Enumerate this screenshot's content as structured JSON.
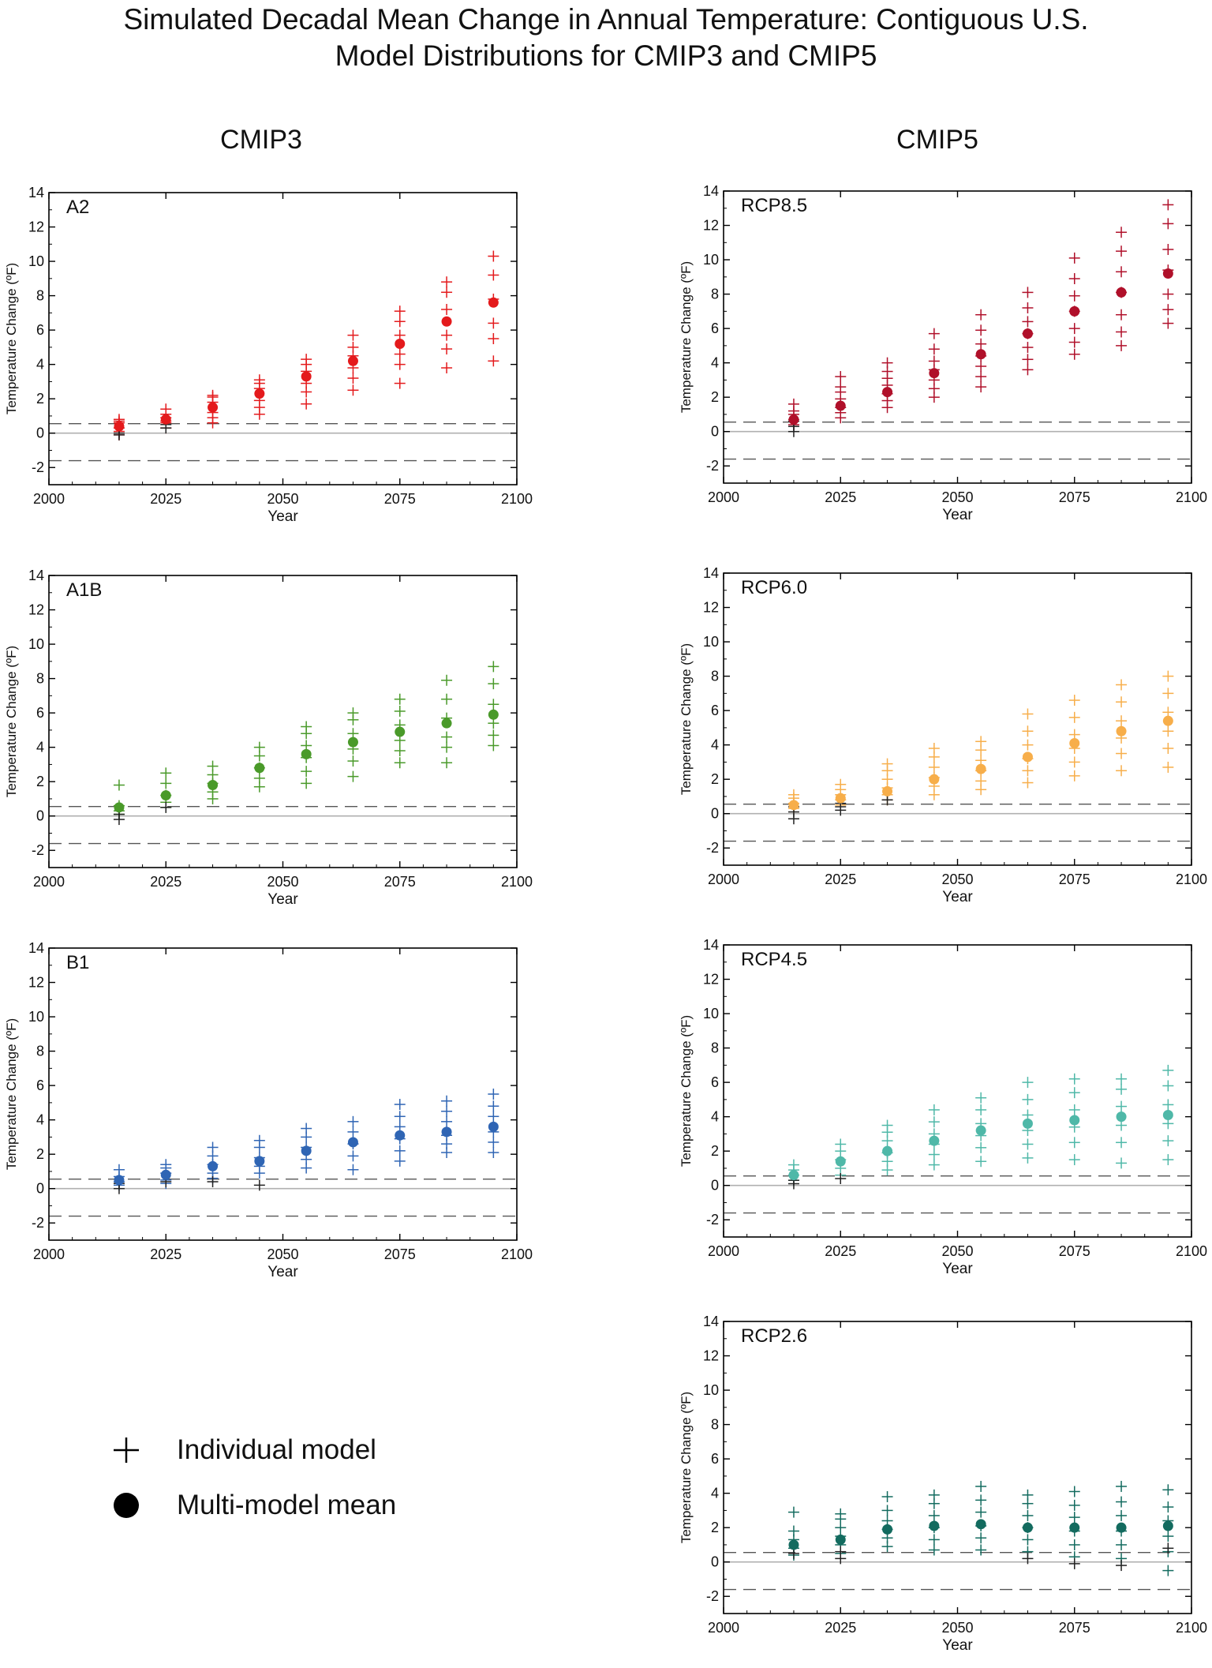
{
  "figure": {
    "title_line1": "Simulated Decadal Mean Change in Annual Temperature: Contiguous U.S.",
    "title_line2": "Model Distributions for CMIP3 and CMIP5",
    "columns": [
      "CMIP3",
      "CMIP5"
    ]
  },
  "legend": {
    "individual": "Individual model",
    "mean": "Multi-model mean"
  },
  "colors": {
    "A2": "#e41a1c",
    "A1B": "#4a9a2a",
    "B1": "#2f65b4",
    "RCP8.5": "#b0102a",
    "RCP6.0": "#f7ae4a",
    "RCP4.5": "#4fb8a8",
    "RCP2.6": "#136b5f",
    "observed": "#222222",
    "zero_line": "#b0b0b0",
    "range_lines": "#555555"
  },
  "chart_data": [
    {
      "type": "scatter",
      "panel": "A2",
      "label": "A2",
      "xlabel": "Year",
      "ylabel": "Temperature Change (ºF)",
      "xlim": [
        2000,
        2100
      ],
      "ylim": [
        -3,
        14
      ],
      "xticks": [
        2000,
        2025,
        2050,
        2075,
        2100
      ],
      "yticks": [
        -2,
        0,
        2,
        4,
        6,
        8,
        10,
        12,
        14
      ],
      "ref_lines": [
        0.55,
        -1.6
      ],
      "x": [
        2015,
        2025,
        2035,
        2045,
        2055,
        2065,
        2075,
        2085,
        2095
      ],
      "mean": [
        0.4,
        0.8,
        1.5,
        2.3,
        3.3,
        4.2,
        5.2,
        6.5,
        7.6
      ],
      "models": [
        [
          -0.1,
          0.1,
          0.3,
          0.6,
          0.7,
          0.8
        ],
        [
          0.3,
          0.6,
          0.7,
          0.9,
          1.1,
          1.4
        ],
        [
          0.6,
          0.9,
          1.2,
          1.8,
          2.1,
          2.2
        ],
        [
          1.1,
          1.5,
          1.9,
          2.6,
          2.9,
          3.1
        ],
        [
          1.7,
          2.4,
          2.9,
          3.6,
          4.0,
          4.3
        ],
        [
          2.5,
          3.2,
          3.8,
          4.5,
          5.0,
          5.7
        ],
        [
          2.9,
          4.0,
          4.6,
          5.7,
          6.5,
          7.1
        ],
        [
          3.8,
          4.9,
          5.7,
          7.2,
          8.2,
          8.8
        ],
        [
          4.2,
          5.5,
          6.4,
          7.8,
          9.2,
          10.3
        ]
      ],
      "obs_models": [
        [
          -0.1,
          0.0
        ],
        [
          0.3,
          0.5
        ]
      ]
    },
    {
      "type": "scatter",
      "panel": "A1B",
      "label": "A1B",
      "xlabel": "Year",
      "ylabel": "Temperature Change (ºF)",
      "xlim": [
        2000,
        2100
      ],
      "ylim": [
        -3,
        14
      ],
      "xticks": [
        2000,
        2025,
        2050,
        2075,
        2100
      ],
      "yticks": [
        -2,
        0,
        2,
        4,
        6,
        8,
        10,
        12,
        14
      ],
      "ref_lines": [
        0.55,
        -1.6
      ],
      "x": [
        2015,
        2025,
        2035,
        2045,
        2055,
        2065,
        2075,
        2085,
        2095
      ],
      "mean": [
        0.5,
        1.2,
        1.8,
        2.8,
        3.6,
        4.3,
        4.9,
        5.4,
        5.9
      ],
      "models": [
        [
          0.1,
          0.3,
          0.6,
          1.8
        ],
        [
          0.5,
          0.8,
          1.2,
          1.9,
          2.5
        ],
        [
          1.0,
          1.4,
          1.9,
          2.4,
          2.9
        ],
        [
          1.7,
          2.2,
          2.8,
          3.5,
          4.0
        ],
        [
          1.9,
          2.6,
          3.4,
          4.1,
          4.8,
          5.2
        ],
        [
          2.3,
          3.2,
          3.9,
          4.8,
          5.6,
          6.0
        ],
        [
          3.1,
          3.8,
          4.4,
          5.3,
          6.1,
          6.8
        ],
        [
          3.1,
          4.0,
          4.6,
          5.7,
          6.8,
          7.9
        ],
        [
          4.1,
          4.7,
          5.4,
          6.5,
          7.7,
          8.7
        ]
      ],
      "obs_models": [
        [
          -0.2,
          0.1
        ],
        [
          0.5
        ]
      ]
    },
    {
      "type": "scatter",
      "panel": "B1",
      "label": "B1",
      "xlabel": "Year",
      "ylabel": "Temperature Change (ºF)",
      "xlim": [
        2000,
        2100
      ],
      "ylim": [
        -3,
        14
      ],
      "xticks": [
        2000,
        2025,
        2050,
        2075,
        2100
      ],
      "yticks": [
        -2,
        0,
        2,
        4,
        6,
        8,
        10,
        12,
        14
      ],
      "ref_lines": [
        0.55,
        -1.6
      ],
      "x": [
        2015,
        2025,
        2035,
        2045,
        2055,
        2065,
        2075,
        2085,
        2095
      ],
      "mean": [
        0.5,
        0.8,
        1.3,
        1.6,
        2.2,
        2.7,
        3.1,
        3.3,
        3.6
      ],
      "models": [
        [
          0.2,
          0.4,
          0.7,
          1.1
        ],
        [
          0.3,
          0.5,
          0.9,
          1.2,
          1.4
        ],
        [
          0.6,
          0.9,
          1.4,
          1.9,
          2.4
        ],
        [
          0.9,
          1.3,
          1.8,
          2.4,
          2.8
        ],
        [
          1.2,
          1.7,
          2.4,
          3.0,
          3.5
        ],
        [
          1.1,
          1.9,
          2.6,
          3.3,
          3.9
        ],
        [
          1.6,
          2.2,
          2.9,
          3.6,
          4.2,
          4.9
        ],
        [
          2.1,
          2.6,
          3.1,
          3.9,
          4.5,
          5.1
        ],
        [
          2.1,
          2.7,
          3.3,
          4.2,
          4.8,
          5.5
        ]
      ],
      "obs_models": [
        [
          0.0,
          0.3
        ],
        [
          0.4
        ],
        [
          0.4
        ],
        [
          0.2
        ]
      ]
    },
    {
      "type": "scatter",
      "panel": "RCP8.5",
      "label": "RCP8.5",
      "xlabel": "Year",
      "ylabel": "Temperature Change (ºF)",
      "xlim": [
        2000,
        2100
      ],
      "ylim": [
        -3,
        14
      ],
      "xticks": [
        2000,
        2025,
        2050,
        2075,
        2100
      ],
      "yticks": [
        -2,
        0,
        2,
        4,
        6,
        8,
        10,
        12,
        14
      ],
      "ref_lines": [
        0.55,
        -1.6
      ],
      "x": [
        2015,
        2025,
        2035,
        2045,
        2055,
        2065,
        2075,
        2085,
        2095
      ],
      "mean": [
        0.7,
        1.5,
        2.3,
        3.4,
        4.5,
        5.7,
        7.0,
        8.1,
        9.2
      ],
      "models": [
        [
          0.4,
          0.7,
          1.0,
          1.2,
          1.6
        ],
        [
          0.8,
          1.1,
          1.4,
          1.9,
          2.3,
          2.6,
          3.2
        ],
        [
          1.4,
          1.8,
          2.2,
          2.7,
          3.1,
          3.5,
          4.0
        ],
        [
          2.0,
          2.5,
          3.0,
          3.6,
          4.1,
          4.8,
          5.7
        ],
        [
          2.6,
          3.2,
          3.8,
          4.4,
          5.1,
          5.9,
          6.8
        ],
        [
          3.6,
          4.2,
          4.9,
          5.7,
          6.4,
          7.2,
          8.1
        ],
        [
          4.5,
          5.2,
          6.0,
          7.0,
          7.9,
          8.9,
          10.1
        ],
        [
          5.0,
          5.8,
          6.8,
          8.1,
          9.3,
          10.5,
          11.6
        ],
        [
          6.3,
          7.1,
          8.0,
          9.4,
          10.6,
          12.1,
          13.2
        ]
      ],
      "obs_models": [
        [
          0.0,
          0.3,
          0.6
        ],
        []
      ]
    },
    {
      "type": "scatter",
      "panel": "RCP6.0",
      "label": "RCP6.0",
      "xlabel": "Year",
      "ylabel": "Temperature Change (ºF)",
      "xlim": [
        2000,
        2100
      ],
      "ylim": [
        -3,
        14
      ],
      "xticks": [
        2000,
        2025,
        2050,
        2075,
        2100
      ],
      "yticks": [
        -2,
        0,
        2,
        4,
        6,
        8,
        10,
        12,
        14
      ],
      "ref_lines": [
        0.55,
        -1.6
      ],
      "x": [
        2015,
        2025,
        2035,
        2045,
        2055,
        2065,
        2075,
        2085,
        2095
      ],
      "mean": [
        0.5,
        0.9,
        1.3,
        2.0,
        2.6,
        3.3,
        4.1,
        4.8,
        5.4
      ],
      "models": [
        [
          0.3,
          0.6,
          0.9,
          1.1
        ],
        [
          0.5,
          0.8,
          1.1,
          1.4,
          1.7
        ],
        [
          0.8,
          1.1,
          1.5,
          2.0,
          2.5,
          2.9
        ],
        [
          1.1,
          1.6,
          2.1,
          2.7,
          3.3,
          3.8
        ],
        [
          1.4,
          1.9,
          2.5,
          3.1,
          3.7,
          4.2
        ],
        [
          1.8,
          2.5,
          3.2,
          4.0,
          4.8,
          5.8
        ],
        [
          2.2,
          3.0,
          3.8,
          4.6,
          5.6,
          6.6
        ],
        [
          2.5,
          3.5,
          4.4,
          5.4,
          6.5,
          7.5
        ],
        [
          2.7,
          3.8,
          4.8,
          5.9,
          7.0,
          8.0
        ]
      ],
      "obs_models": [
        [
          -0.3,
          0.1,
          0.4
        ],
        [
          0.2,
          0.4,
          0.6
        ],
        [
          0.8
        ]
      ]
    },
    {
      "type": "scatter",
      "panel": "RCP4.5",
      "label": "RCP4.5",
      "xlabel": "Year",
      "ylabel": "Temperature Change (ºF)",
      "xlim": [
        2000,
        2100
      ],
      "ylim": [
        -3,
        14
      ],
      "xticks": [
        2000,
        2025,
        2050,
        2075,
        2100
      ],
      "yticks": [
        -2,
        0,
        2,
        4,
        6,
        8,
        10,
        12,
        14
      ],
      "ref_lines": [
        0.55,
        -1.6
      ],
      "x": [
        2015,
        2025,
        2035,
        2045,
        2055,
        2065,
        2075,
        2085,
        2095
      ],
      "mean": [
        0.6,
        1.4,
        2.0,
        2.6,
        3.2,
        3.6,
        3.8,
        4.0,
        4.1
      ],
      "models": [
        [
          0.3,
          0.6,
          0.9,
          1.2
        ],
        [
          0.6,
          1.0,
          1.5,
          2.0,
          2.4
        ],
        [
          0.9,
          1.4,
          1.9,
          2.6,
          3.1,
          3.5
        ],
        [
          1.2,
          1.8,
          2.4,
          3.0,
          3.7,
          4.4
        ],
        [
          1.4,
          2.2,
          2.9,
          3.6,
          4.4,
          5.1
        ],
        [
          1.6,
          2.4,
          3.2,
          4.1,
          5.0,
          6.0
        ],
        [
          1.5,
          2.5,
          3.4,
          4.4,
          5.4,
          6.2
        ],
        [
          1.3,
          2.5,
          3.5,
          4.6,
          5.6,
          6.2
        ],
        [
          1.5,
          2.6,
          3.6,
          4.7,
          5.8,
          6.7
        ]
      ],
      "obs_models": [
        [
          0.1,
          0.3
        ],
        [
          0.4
        ]
      ]
    },
    {
      "type": "scatter",
      "panel": "RCP2.6",
      "label": "RCP2.6",
      "xlabel": "Year",
      "ylabel": "Temperature Change (ºF)",
      "xlim": [
        2000,
        2100
      ],
      "ylim": [
        -3,
        14
      ],
      "xticks": [
        2000,
        2025,
        2050,
        2075,
        2100
      ],
      "yticks": [
        -2,
        0,
        2,
        4,
        6,
        8,
        10,
        12,
        14
      ],
      "ref_lines": [
        0.55,
        -1.6
      ],
      "x": [
        2015,
        2025,
        2035,
        2045,
        2055,
        2065,
        2075,
        2085,
        2095
      ],
      "mean": [
        1.0,
        1.3,
        1.9,
        2.1,
        2.2,
        2.0,
        2.0,
        2.0,
        2.1
      ],
      "models": [
        [
          0.4,
          0.8,
          1.3,
          1.8,
          2.9
        ],
        [
          0.5,
          1.0,
          1.5,
          2.0,
          2.5,
          2.8
        ],
        [
          0.9,
          1.4,
          1.9,
          2.4,
          3.0,
          3.8
        ],
        [
          0.7,
          1.3,
          2.0,
          2.7,
          3.4,
          3.9
        ],
        [
          0.7,
          1.4,
          2.1,
          2.9,
          3.6,
          4.4
        ],
        [
          0.6,
          1.3,
          2.0,
          2.7,
          3.4,
          3.9
        ],
        [
          0.3,
          1.0,
          1.8,
          2.6,
          3.3,
          4.1
        ],
        [
          0.2,
          1.0,
          1.8,
          2.7,
          3.5,
          4.4
        ],
        [
          -0.5,
          0.6,
          1.5,
          2.4,
          3.2,
          4.2
        ]
      ],
      "obs_models": [
        [
          0.5
        ],
        [
          0.2,
          0.6
        ],
        [],
        [],
        [],
        [
          0.2
        ],
        [
          -0.1
        ],
        [
          -0.2
        ],
        [
          0.8
        ]
      ]
    }
  ]
}
